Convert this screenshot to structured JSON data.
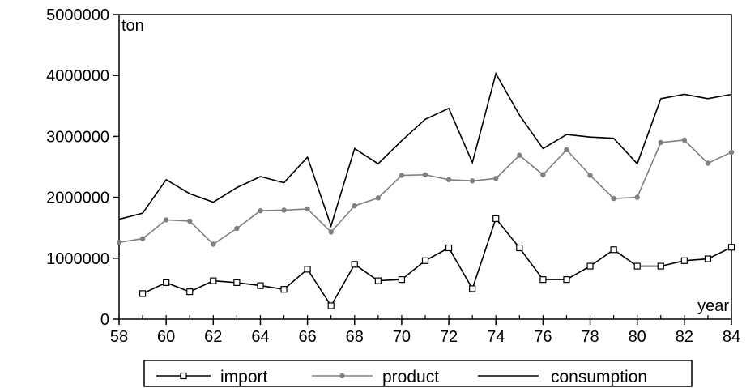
{
  "chart_data": {
    "type": "line",
    "x": [
      58,
      59,
      60,
      61,
      62,
      63,
      64,
      65,
      66,
      67,
      68,
      69,
      70,
      71,
      72,
      73,
      74,
      75,
      76,
      77,
      78,
      79,
      80,
      81,
      82,
      83,
      84
    ],
    "x_ticks": [
      "58",
      "60",
      "62",
      "64",
      "66",
      "68",
      "70",
      "72",
      "74",
      "76",
      "78",
      "80",
      "82",
      "84"
    ],
    "y_ticks": [
      "0",
      "1000000",
      "2000000",
      "3000000",
      "4000000",
      "5000000"
    ],
    "ylim": [
      0,
      5000000
    ],
    "xlim": [
      58,
      84
    ],
    "ylabel": "ton",
    "xlabel": "year",
    "grid": false,
    "legend_position": "bottom",
    "series": [
      {
        "name": "import",
        "color": "#000000",
        "marker": "open-square",
        "values": [
          null,
          420000,
          600000,
          450000,
          630000,
          600000,
          550000,
          490000,
          820000,
          220000,
          900000,
          630000,
          650000,
          960000,
          1170000,
          500000,
          1650000,
          1170000,
          650000,
          650000,
          870000,
          1140000,
          870000,
          870000,
          960000,
          990000,
          1180000
        ]
      },
      {
        "name": "product",
        "color": "#808080",
        "marker": "filled-circle",
        "values": [
          1260000,
          1320000,
          1630000,
          1610000,
          1230000,
          1490000,
          1780000,
          1790000,
          1810000,
          1430000,
          1860000,
          1990000,
          2360000,
          2370000,
          2290000,
          2270000,
          2310000,
          2690000,
          2370000,
          2780000,
          2360000,
          1980000,
          2000000,
          2900000,
          2940000,
          2560000,
          2740000
        ]
      },
      {
        "name": "consumption",
        "color": "#000000",
        "marker": "none",
        "values": [
          1640000,
          1740000,
          2290000,
          2060000,
          1920000,
          2160000,
          2340000,
          2240000,
          2660000,
          1530000,
          2800000,
          2550000,
          2930000,
          3280000,
          3460000,
          2570000,
          4030000,
          3350000,
          2800000,
          3030000,
          2990000,
          2970000,
          2550000,
          3620000,
          3690000,
          3620000,
          3690000
        ]
      }
    ]
  }
}
